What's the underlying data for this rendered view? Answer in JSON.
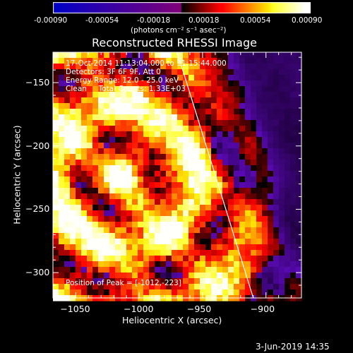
{
  "colorbar": {
    "tick_labels": [
      "-0.00090",
      "-0.00054",
      "-0.00018",
      "0.00018",
      "0.00054",
      "0.00090"
    ],
    "units": "(photons cm⁻² s⁻¹ asec⁻²)",
    "range": [
      -0.0009,
      0.0009
    ]
  },
  "chart_data": {
    "type": "heatmap",
    "title": "Reconstructed RHESSI Image",
    "xlabel": "Heliocentric X (arcsec)",
    "ylabel": "Heliocentric Y (arcsec)",
    "xlim": [
      -1068,
      -872
    ],
    "ylim": [
      -320,
      -126
    ],
    "x_ticks": [
      -1050,
      -1000,
      -950,
      -900
    ],
    "y_ticks": [
      -150,
      -200,
      -250,
      -300
    ],
    "x_tick_labels": [
      "−1050",
      "−1000",
      "−950",
      "−900"
    ],
    "y_tick_labels": [
      "−150",
      "−200",
      "−250",
      "−300"
    ],
    "annotations": [
      "17-Oct-2014 11:13:04.000 to 11:15:44.000",
      "Detectors: 3F 6F 9F, Att 0",
      "Energy Range: 12.0 - 25.0 keV",
      "Clean     Total Counts: 1.33E+03"
    ],
    "peak_label": "Position of Peak = [-1012,-223]",
    "peak": [
      -1012,
      -223
    ],
    "limb_line": [
      [
        -970,
        -126
      ],
      [
        -910,
        -320
      ]
    ],
    "colormap": "heat (black-red-orange-yellow-white); negatives blue-purple"
  },
  "timestamp": "3-Jun-2019 14:35"
}
